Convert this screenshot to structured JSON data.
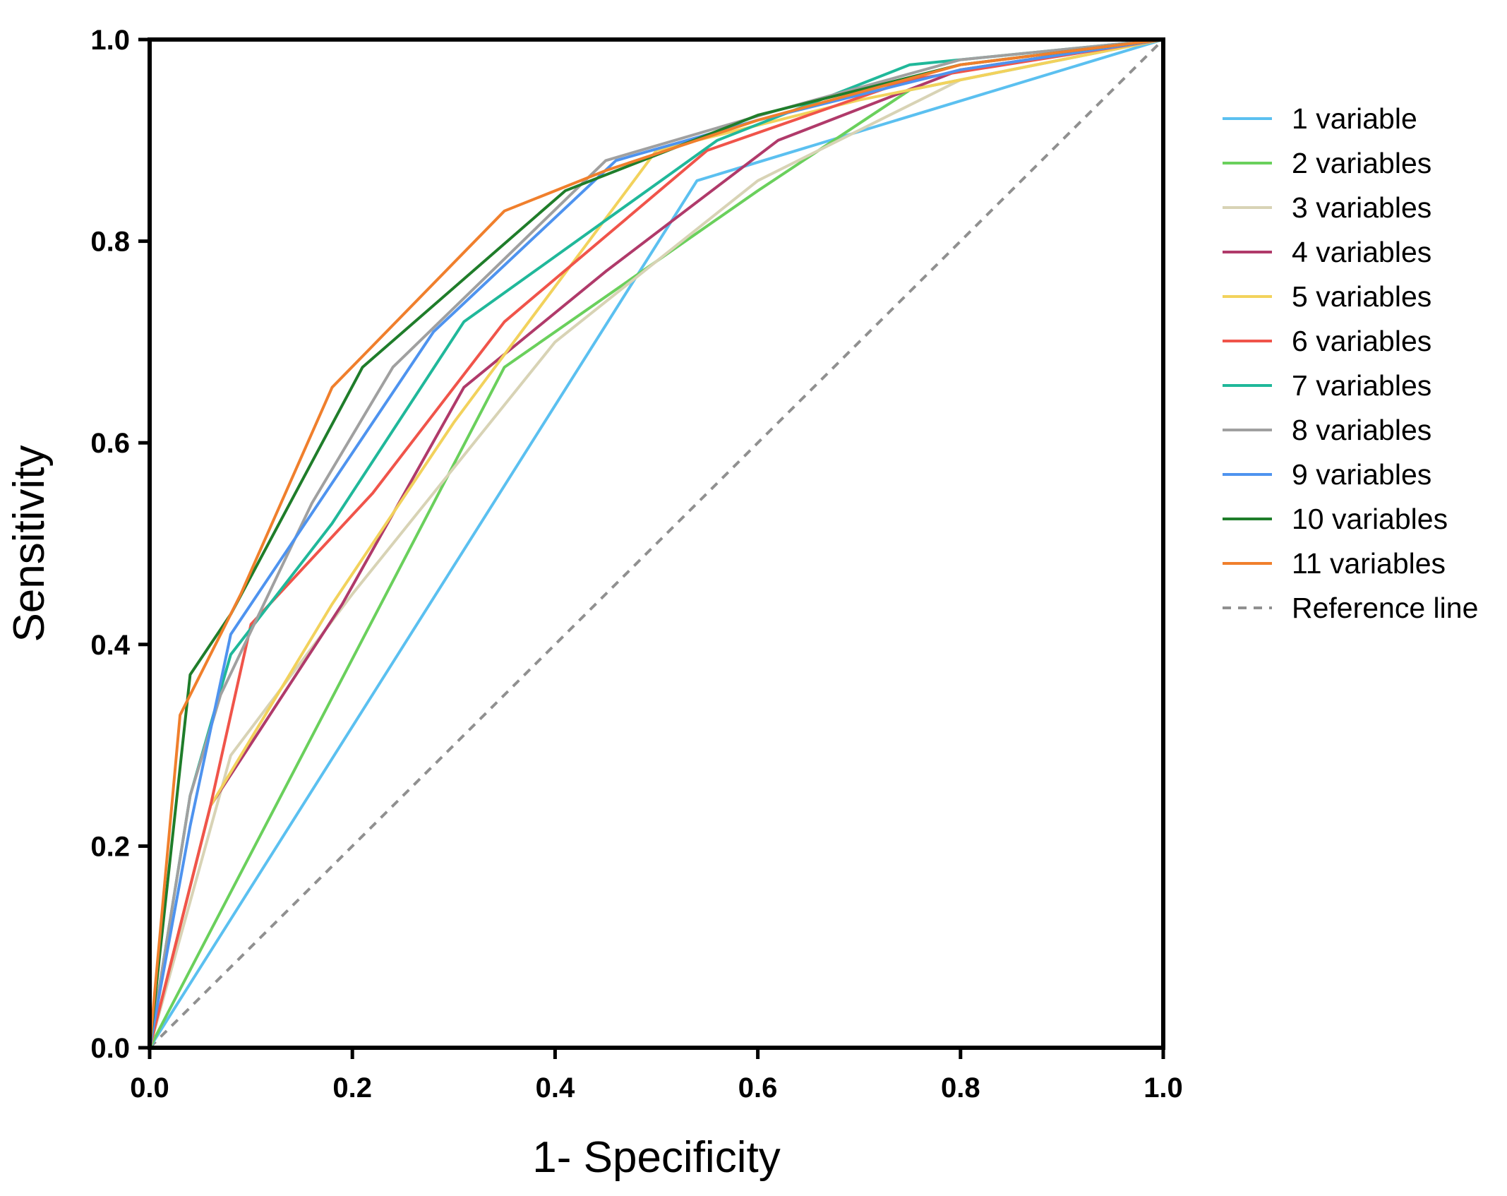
{
  "chart_data": {
    "type": "line",
    "title": "",
    "xlabel": "1- Specificity",
    "ylabel": "Sensitivity",
    "xlim": [
      0,
      1
    ],
    "ylim": [
      0,
      1
    ],
    "xticks": [
      "0.0",
      "0.2",
      "0.4",
      "0.6",
      "0.8",
      "1.0"
    ],
    "yticks": [
      "0.0",
      "0.2",
      "0.4",
      "0.6",
      "0.8",
      "1.0"
    ],
    "grid": false,
    "legend_position": "right",
    "series": [
      {
        "name": "1 variable",
        "color": "#5bc0f0",
        "dash": false,
        "x": [
          0,
          0.54,
          1.0
        ],
        "y": [
          0,
          0.86,
          1.0
        ]
      },
      {
        "name": "2 variables",
        "color": "#6ad05c",
        "dash": false,
        "x": [
          0,
          0.35,
          0.6,
          0.75,
          1.0
        ],
        "y": [
          0,
          0.675,
          0.85,
          0.95,
          1.0
        ]
      },
      {
        "name": "3 variables",
        "color": "#d8d3b5",
        "dash": false,
        "x": [
          0,
          0.08,
          0.2,
          0.4,
          0.6,
          0.8,
          1.0
        ],
        "y": [
          0,
          0.29,
          0.45,
          0.7,
          0.86,
          0.96,
          1.0
        ]
      },
      {
        "name": "4 variables",
        "color": "#b03a6a",
        "dash": false,
        "x": [
          0,
          0.06,
          0.19,
          0.31,
          0.45,
          0.62,
          0.8,
          1.0
        ],
        "y": [
          0,
          0.24,
          0.44,
          0.655,
          0.77,
          0.9,
          0.97,
          1.0
        ]
      },
      {
        "name": "5 variables",
        "color": "#f2d25c",
        "dash": false,
        "x": [
          0,
          0.06,
          0.18,
          0.3,
          0.5,
          0.7,
          0.85,
          1.0
        ],
        "y": [
          0,
          0.24,
          0.44,
          0.62,
          0.89,
          0.94,
          0.97,
          1.0
        ]
      },
      {
        "name": "6 variables",
        "color": "#f0544a",
        "dash": false,
        "x": [
          0,
          0.06,
          0.1,
          0.22,
          0.35,
          0.55,
          0.75,
          1.0
        ],
        "y": [
          0,
          0.24,
          0.42,
          0.55,
          0.72,
          0.89,
          0.96,
          1.0
        ]
      },
      {
        "name": "7 variables",
        "color": "#20b89a",
        "dash": false,
        "x": [
          0,
          0.04,
          0.08,
          0.18,
          0.31,
          0.56,
          0.75,
          1.0
        ],
        "y": [
          0,
          0.25,
          0.39,
          0.52,
          0.72,
          0.9,
          0.975,
          1.0
        ]
      },
      {
        "name": "8 variables",
        "color": "#a0a0a0",
        "dash": false,
        "x": [
          0,
          0.04,
          0.07,
          0.16,
          0.24,
          0.45,
          0.62,
          0.8,
          1.0
        ],
        "y": [
          0,
          0.25,
          0.35,
          0.54,
          0.675,
          0.88,
          0.93,
          0.98,
          1.0
        ]
      },
      {
        "name": "9 variables",
        "color": "#4e93ef",
        "dash": false,
        "x": [
          0,
          0.04,
          0.08,
          0.18,
          0.28,
          0.46,
          0.6,
          0.8,
          1.0
        ],
        "y": [
          0,
          0.22,
          0.41,
          0.56,
          0.71,
          0.88,
          0.92,
          0.97,
          1.0
        ]
      },
      {
        "name": "10 variables",
        "color": "#1f7d2a",
        "dash": false,
        "x": [
          0,
          0.04,
          0.08,
          0.21,
          0.41,
          0.6,
          0.8,
          1.0
        ],
        "y": [
          0,
          0.37,
          0.43,
          0.675,
          0.85,
          0.925,
          0.975,
          1.0
        ]
      },
      {
        "name": "11 variables",
        "color": "#f07f2c",
        "dash": false,
        "x": [
          0,
          0.03,
          0.09,
          0.18,
          0.35,
          0.45,
          0.6,
          0.8,
          1.0
        ],
        "y": [
          0,
          0.33,
          0.45,
          0.655,
          0.83,
          0.87,
          0.92,
          0.975,
          1.0
        ]
      },
      {
        "name": "Reference line",
        "color": "#909090",
        "dash": true,
        "x": [
          0,
          1
        ],
        "y": [
          0,
          1
        ]
      }
    ]
  }
}
